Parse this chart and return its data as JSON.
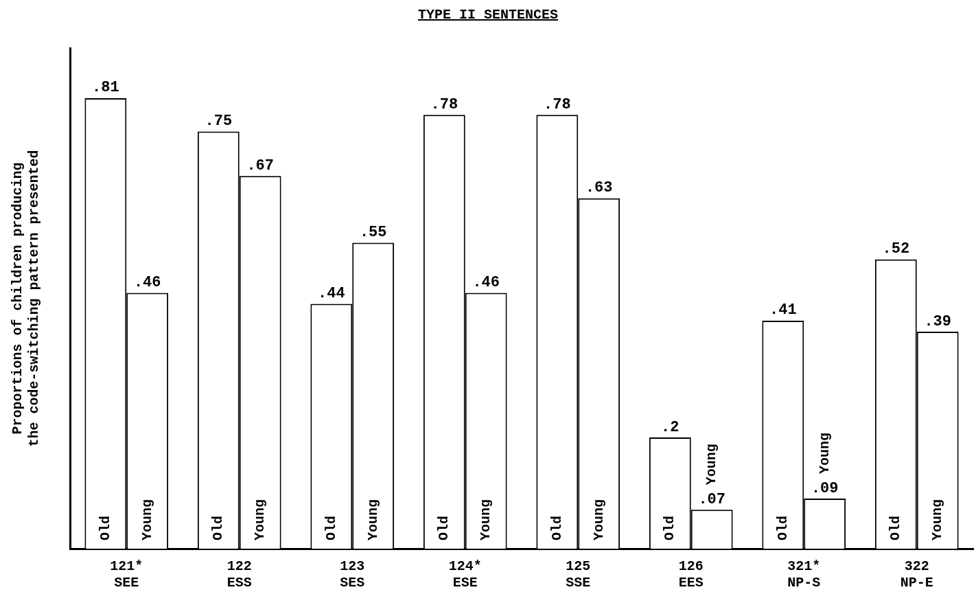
{
  "chart_data": {
    "type": "bar",
    "title": "TYPE II SENTENCES",
    "ylabel": "Proportions of children producing\nthe code-switching pattern presented",
    "categories": [
      "121*\nSEE",
      "122\nESS",
      "123\nSES",
      "124*\nESE",
      "125\nSSE",
      "126\nEES",
      "321*\nNP-S",
      "322\nNP-E"
    ],
    "series": [
      {
        "name": "Old",
        "color": "#ffffff",
        "values": [
          0.81,
          0.75,
          0.44,
          0.78,
          0.78,
          0.2,
          0.41,
          0.52
        ],
        "value_labels": [
          ".81",
          ".75",
          ".44",
          ".78",
          ".78",
          ".2",
          ".41",
          ".52"
        ]
      },
      {
        "name": "Young",
        "color": "#ffffff",
        "values": [
          0.46,
          0.67,
          0.55,
          0.46,
          0.63,
          0.07,
          0.09,
          0.39
        ],
        "value_labels": [
          ".46",
          ".67",
          ".55",
          ".46",
          ".63",
          ".07",
          ".09",
          ".39"
        ]
      }
    ],
    "data_labels": true,
    "grid": false,
    "legend": false
  }
}
